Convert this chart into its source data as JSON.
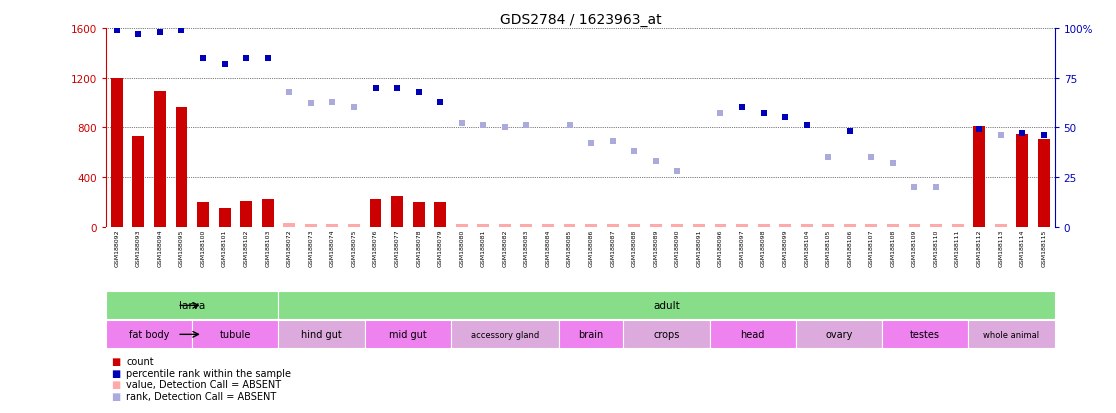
{
  "title": "GDS2784 / 1623963_at",
  "samples": [
    "GSM188092",
    "GSM188093",
    "GSM188094",
    "GSM188095",
    "GSM188100",
    "GSM188101",
    "GSM188102",
    "GSM188103",
    "GSM188072",
    "GSM188073",
    "GSM188074",
    "GSM188075",
    "GSM188076",
    "GSM188077",
    "GSM188078",
    "GSM188079",
    "GSM188080",
    "GSM188081",
    "GSM188082",
    "GSM188083",
    "GSM188084",
    "GSM188085",
    "GSM188086",
    "GSM188087",
    "GSM188088",
    "GSM188089",
    "GSM188090",
    "GSM188091",
    "GSM188096",
    "GSM188097",
    "GSM188098",
    "GSM188099",
    "GSM188104",
    "GSM188105",
    "GSM188106",
    "GSM188107",
    "GSM188108",
    "GSM188109",
    "GSM188110",
    "GSM188111",
    "GSM188112",
    "GSM188113",
    "GSM188114",
    "GSM188115"
  ],
  "count_values": [
    1200,
    730,
    1090,
    960,
    200,
    150,
    210,
    220,
    null,
    null,
    null,
    null,
    220,
    250,
    200,
    200,
    null,
    null,
    null,
    null,
    null,
    null,
    null,
    null,
    null,
    null,
    null,
    null,
    null,
    null,
    null,
    null,
    null,
    null,
    null,
    null,
    null,
    null,
    null,
    null,
    810,
    null,
    750,
    710
  ],
  "absent_count_values": [
    null,
    null,
    null,
    null,
    null,
    null,
    null,
    null,
    30,
    25,
    25,
    20,
    null,
    null,
    null,
    null,
    25,
    20,
    25,
    20,
    20,
    25,
    20,
    25,
    25,
    20,
    20,
    25,
    25,
    20,
    20,
    20,
    20,
    25,
    20,
    25,
    25,
    20,
    20,
    20,
    null,
    25,
    null,
    null
  ],
  "rank_present": [
    99,
    97,
    98,
    99,
    85,
    82,
    85,
    85,
    null,
    null,
    null,
    null,
    70,
    70,
    68,
    63,
    null,
    null,
    null,
    null,
    null,
    null,
    null,
    null,
    null,
    null,
    null,
    null,
    null,
    60,
    57,
    55,
    51,
    null,
    48,
    null,
    null,
    null,
    null,
    null,
    49,
    null,
    47,
    46
  ],
  "rank_absent": [
    null,
    null,
    null,
    null,
    null,
    null,
    null,
    null,
    68,
    62,
    63,
    60,
    null,
    null,
    null,
    null,
    52,
    51,
    50,
    51,
    null,
    51,
    42,
    43,
    38,
    33,
    28,
    null,
    57,
    null,
    null,
    null,
    null,
    35,
    null,
    35,
    32,
    20,
    20,
    null,
    null,
    46,
    null,
    null
  ],
  "ylim_left": [
    0,
    1600
  ],
  "ylim_right": [
    0,
    100
  ],
  "yticks_left": [
    0,
    400,
    800,
    1200,
    1600
  ],
  "yticks_right": [
    0,
    25,
    50,
    75,
    100
  ],
  "dev_stage_groups": [
    {
      "label": "larva",
      "start": 0,
      "end": 7
    },
    {
      "label": "adult",
      "start": 8,
      "end": 43
    }
  ],
  "tissue_groups": [
    {
      "label": "fat body",
      "start": 0,
      "end": 3,
      "color": "#ee82ee"
    },
    {
      "label": "tubule",
      "start": 4,
      "end": 7,
      "color": "#ee82ee"
    },
    {
      "label": "hind gut",
      "start": 8,
      "end": 11,
      "color": "#ddaadd"
    },
    {
      "label": "mid gut",
      "start": 12,
      "end": 15,
      "color": "#ee82ee"
    },
    {
      "label": "accessory gland",
      "start": 16,
      "end": 20,
      "color": "#ddaadd"
    },
    {
      "label": "brain",
      "start": 21,
      "end": 23,
      "color": "#ee82ee"
    },
    {
      "label": "crops",
      "start": 24,
      "end": 27,
      "color": "#ddaadd"
    },
    {
      "label": "head",
      "start": 28,
      "end": 31,
      "color": "#ee82ee"
    },
    {
      "label": "ovary",
      "start": 32,
      "end": 35,
      "color": "#ddaadd"
    },
    {
      "label": "testes",
      "start": 36,
      "end": 39,
      "color": "#ee82ee"
    },
    {
      "label": "whole animal",
      "start": 40,
      "end": 43,
      "color": "#ddaadd"
    }
  ],
  "bar_color_present": "#cc0000",
  "bar_color_absent": "#ffaaaa",
  "dot_color_present": "#0000bb",
  "dot_color_absent": "#aaaadd",
  "dev_stage_color_larva": "#88dd88",
  "dev_stage_color_adult": "#88dd88",
  "background_color": "#ffffff",
  "axis_color_left": "#cc0000",
  "axis_color_right": "#0000bb"
}
